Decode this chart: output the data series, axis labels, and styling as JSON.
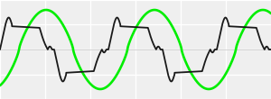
{
  "background_color": "#efefef",
  "grid_color": "#ffffff",
  "voltage_color": "#1a1a1a",
  "current_color": "#00ee00",
  "figsize": [
    3.0,
    1.1
  ],
  "dpi": 100,
  "xlim": [
    0,
    1
  ],
  "ylim": [
    -1.15,
    1.15
  ],
  "n_points": 4000,
  "cycles": 2.5,
  "voltage_amplitude": 0.58,
  "current_amplitude": 0.92,
  "voltage_linewidth": 1.3,
  "current_linewidth": 1.9,
  "current_phase_shift": -1.1,
  "n_vlines": 7,
  "n_hlines": 5
}
